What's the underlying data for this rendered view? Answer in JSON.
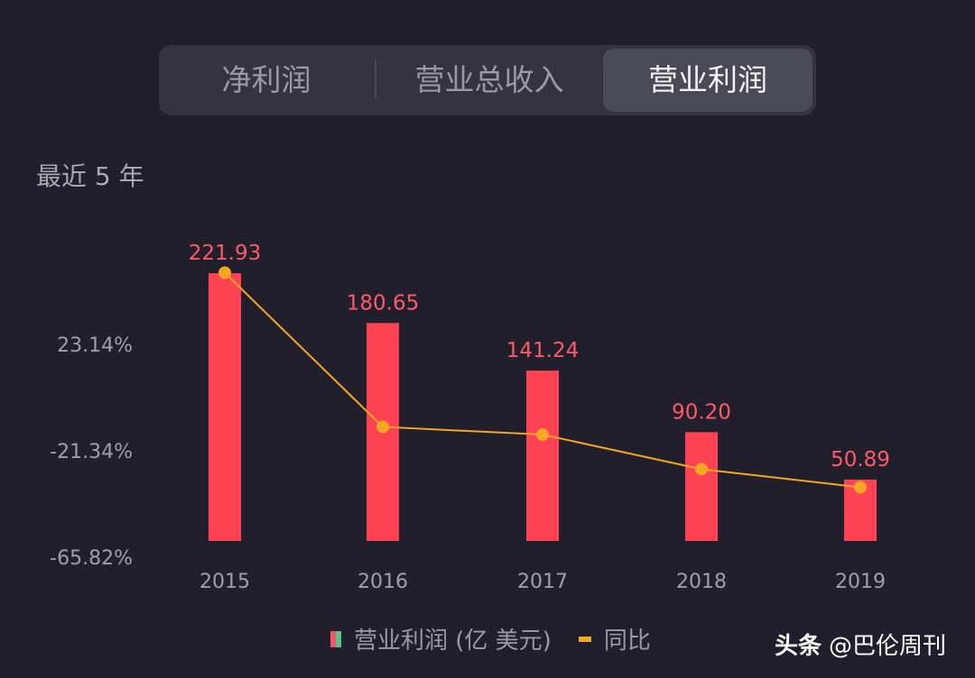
{
  "tabs": [
    {
      "label": "净利润"
    },
    {
      "label": "营业总收入"
    },
    {
      "label": "营业利润",
      "active": true
    }
  ],
  "period_label": "最近 5 年",
  "chart_data": {
    "type": "bar",
    "categories": [
      "2015",
      "2016",
      "2017",
      "2018",
      "2019"
    ],
    "series": [
      {
        "name": "营业利润 (亿 美元)",
        "type": "bar",
        "values": [
          221.93,
          180.65,
          141.24,
          90.2,
          50.89
        ],
        "labels": [
          "221.93",
          "180.65",
          "141.24",
          "90.20",
          "50.89"
        ],
        "color": "#fd4253"
      },
      {
        "name": "同比",
        "type": "line",
        "axis": "left",
        "values": [
          45.2,
          -18.6,
          -21.8,
          -36.1,
          -43.6
        ],
        "color": "#f5a623"
      }
    ],
    "yaxis_left": {
      "ticks": [
        "23.14%",
        "-21.34%",
        "-65.82%"
      ]
    },
    "grid": false,
    "legend": "bottom"
  },
  "legend": {
    "bar_label": "营业利润 (亿 美元)",
    "line_label": "同比"
  },
  "watermark": {
    "brand": "头条",
    "handle": "@巴伦周刊"
  },
  "colors": {
    "background": "#201f2b",
    "bar": "#fd4253",
    "line": "#f5a623",
    "label": "#ff5a69"
  }
}
